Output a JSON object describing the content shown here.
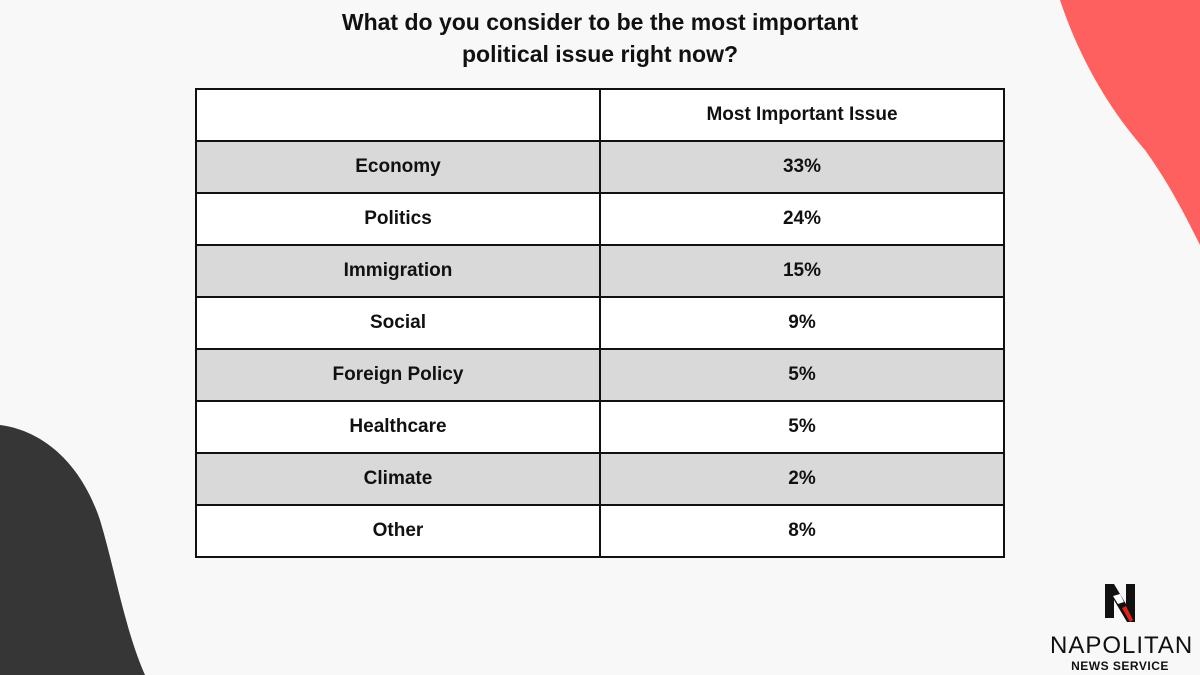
{
  "title_lines": [
    "What do you consider to be the most important",
    "political issue right now?"
  ],
  "colors": {
    "accent_red": "#fe5f5f",
    "dark": "#363636",
    "row_shade": "#d9d9d9"
  },
  "chart_data": {
    "type": "table",
    "title": "What do you consider to be the most important political issue right now?",
    "columns": [
      "",
      "Most Important Issue"
    ],
    "rows": [
      {
        "label": "Economy",
        "value": "33%"
      },
      {
        "label": "Politics",
        "value": "24%"
      },
      {
        "label": "Immigration",
        "value": "15%"
      },
      {
        "label": "Social",
        "value": "9%"
      },
      {
        "label": "Foreign Policy",
        "value": "5%"
      },
      {
        "label": "Healthcare",
        "value": "5%"
      },
      {
        "label": "Climate",
        "value": "2%"
      },
      {
        "label": "Other",
        "value": "8%"
      }
    ]
  },
  "logo": {
    "name": "NAPOLITAN",
    "subtitle": "NEWS SERVICE",
    "icon": "n-eagle-logo-icon"
  }
}
